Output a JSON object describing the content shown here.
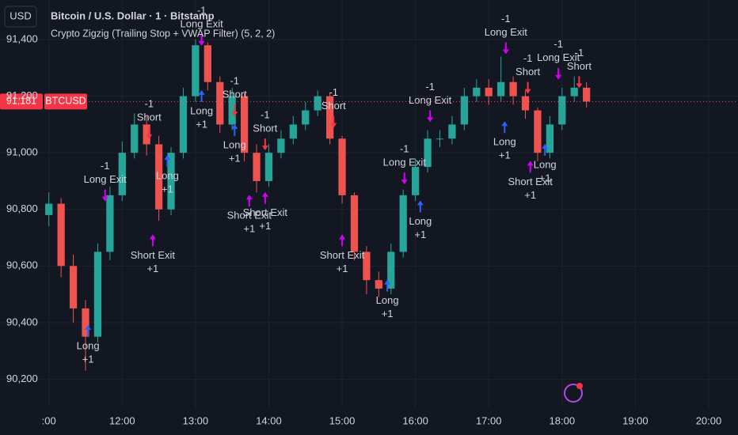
{
  "chart_data": {
    "type": "candlestick",
    "title": "Bitcoin / U.S. Dollar · 1 · Bitstamp",
    "currency": "USD",
    "indicator": "Crypto Zigzig (Trailing Stop + VWAP Filter) (5, 2, 2)",
    "symbol": "BTCUSD",
    "last_price": {
      "value": 91181,
      "label": "91,181"
    },
    "up_color": "#26a69a",
    "down_color": "#ef5350",
    "grid": true,
    "x": [
      660,
      670,
      680,
      690,
      700,
      710,
      720,
      730,
      740,
      750,
      760,
      770,
      780,
      790,
      800,
      810,
      820,
      830,
      840,
      850,
      860,
      870,
      880,
      890,
      900,
      910,
      920,
      930,
      940,
      950,
      960,
      970,
      980,
      990,
      1000,
      1010,
      1020,
      1030,
      1040,
      1050,
      1060,
      1070,
      1080,
      1090,
      1100
    ],
    "open": [
      90780,
      90820,
      90600,
      90450,
      90350,
      90650,
      90850,
      91000,
      91100,
      91030,
      90800,
      91000,
      91200,
      91380,
      91250,
      91100,
      91200,
      91000,
      90900,
      91000,
      91050,
      91100,
      91150,
      91200,
      91050,
      90850,
      90650,
      90550,
      90520,
      90650,
      90850,
      90950,
      91050,
      91050,
      91100,
      91200,
      91230,
      91200,
      91250,
      91200,
      91150,
      91000,
      91100,
      91200,
      91230
    ],
    "high": [
      90860,
      90840,
      90640,
      90480,
      90680,
      90880,
      91040,
      91140,
      91130,
      91060,
      91020,
      91230,
      91400,
      91390,
      91270,
      91230,
      91210,
      91030,
      91030,
      91080,
      91130,
      91180,
      91220,
      91210,
      91060,
      90860,
      90670,
      90580,
      90680,
      90870,
      90980,
      91080,
      91080,
      91130,
      91230,
      91260,
      91260,
      91340,
      91270,
      91220,
      91160,
      91130,
      91230,
      91270,
      91250
    ],
    "low": [
      90740,
      90560,
      90400,
      90230,
      90330,
      90620,
      90830,
      90980,
      90990,
      90760,
      90780,
      90980,
      91180,
      91220,
      91070,
      91080,
      90970,
      90860,
      90880,
      90980,
      91030,
      91080,
      91130,
      91030,
      90820,
      90620,
      90500,
      90490,
      90500,
      90630,
      90830,
      90930,
      91020,
      91030,
      91080,
      91180,
      91170,
      91180,
      91170,
      91120,
      90970,
      90980,
      91080,
      91180,
      91160
    ],
    "close": [
      90820,
      90600,
      90450,
      90350,
      90650,
      90850,
      91000,
      91100,
      91030,
      90800,
      91000,
      91200,
      91380,
      91250,
      91100,
      91200,
      91000,
      90900,
      91000,
      91050,
      91100,
      91150,
      91200,
      91050,
      90850,
      90650,
      90550,
      90520,
      90650,
      90850,
      90950,
      91050,
      91050,
      91100,
      91200,
      91230,
      91200,
      91250,
      91200,
      91150,
      91000,
      91100,
      91200,
      91230,
      91181
    ],
    "xlim": [
      620,
      1224
    ],
    "xticks": [
      {
        "value": 660,
        "label": ":00"
      },
      {
        "value": 720,
        "label": "12:00"
      },
      {
        "value": 780,
        "label": "13:00"
      },
      {
        "value": 840,
        "label": "14:00"
      },
      {
        "value": 900,
        "label": "15:00"
      },
      {
        "value": 960,
        "label": "16:00"
      },
      {
        "value": 1020,
        "label": "17:00"
      },
      {
        "value": 1080,
        "label": "18:00"
      },
      {
        "value": 1140,
        "label": "19:00"
      },
      {
        "value": 1200,
        "label": "20:00"
      }
    ],
    "ylim": [
      90120,
      91540
    ],
    "yticks": [
      {
        "value": 90200,
        "label": "90,200"
      },
      {
        "value": 90400,
        "label": "90,400"
      },
      {
        "value": 90600,
        "label": "90,600"
      },
      {
        "value": 90800,
        "label": "90,800"
      },
      {
        "value": 91000,
        "label": "91,000"
      },
      {
        "value": 91200,
        "label": "91,200"
      },
      {
        "value": 91400,
        "label": "91,400"
      }
    ],
    "signals": [
      {
        "time": 692,
        "price": 90400,
        "label": "Long",
        "qty": "+1",
        "color": "#2962ff"
      },
      {
        "time": 706,
        "price": 90820,
        "label": "Long Exit",
        "qty": "-1",
        "color": "#d500f9"
      },
      {
        "time": 742,
        "price": 91040,
        "label": "Short",
        "qty": "-1",
        "color": "#f23645"
      },
      {
        "time": 745,
        "price": 90720,
        "label": "Short Exit",
        "qty": "+1",
        "color": "#d500f9"
      },
      {
        "time": 757,
        "price": 91000,
        "label": "Long",
        "qty": "+1",
        "color": "#2962ff"
      },
      {
        "time": 785,
        "price": 91370,
        "label": "Long Exit",
        "qty": "-1",
        "color": "#d500f9"
      },
      {
        "time": 785,
        "price": 91230,
        "label": "Long",
        "qty": "+1",
        "color": "#2962ff"
      },
      {
        "time": 812,
        "price": 91120,
        "label": "Short",
        "qty": "-1",
        "color": "#f23645"
      },
      {
        "time": 812,
        "price": 91110,
        "label": "Long",
        "qty": "+1",
        "color": "#2962ff"
      },
      {
        "time": 824,
        "price": 90860,
        "label": "Short Exit",
        "qty": "+1",
        "color": "#d500f9"
      },
      {
        "time": 837,
        "price": 91000,
        "label": "Short",
        "qty": "-1",
        "color": "#f23645"
      },
      {
        "time": 837,
        "price": 90870,
        "label": "Short Exit",
        "qty": "+1",
        "color": "#d500f9"
      },
      {
        "time": 893,
        "price": 91080,
        "label": "Short",
        "qty": "-1",
        "color": "#f23645"
      },
      {
        "time": 900,
        "price": 90720,
        "label": "Short Exit",
        "qty": "+1",
        "color": "#d500f9"
      },
      {
        "time": 937,
        "price": 90560,
        "label": "Long",
        "qty": "+1",
        "color": "#2962ff"
      },
      {
        "time": 951,
        "price": 90880,
        "label": "Long Exit",
        "qty": "-1",
        "color": "#d500f9"
      },
      {
        "time": 964,
        "price": 90840,
        "label": "Long",
        "qty": "+1",
        "color": "#2962ff"
      },
      {
        "time": 972,
        "price": 91100,
        "label": "Long Exit",
        "qty": "-1",
        "color": "#d500f9"
      },
      {
        "time": 1034,
        "price": 91340,
        "label": "Long Exit",
        "qty": "-1",
        "color": "#d500f9"
      },
      {
        "time": 1033,
        "price": 91120,
        "label": "Long",
        "qty": "+1",
        "color": "#2962ff"
      },
      {
        "time": 1052,
        "price": 91200,
        "label": "Short",
        "qty": "-1",
        "color": "#f23645"
      },
      {
        "time": 1054,
        "price": 90980,
        "label": "Short Exit",
        "qty": "+1",
        "color": "#d500f9"
      },
      {
        "time": 1066,
        "price": 91040,
        "label": "Long",
        "qty": "+1",
        "color": "#2962ff"
      },
      {
        "time": 1077,
        "price": 91250,
        "label": "Long Exit",
        "qty": "-1",
        "color": "#d500f9"
      },
      {
        "time": 1094,
        "price": 91220,
        "label": "Short",
        "qty": "-1",
        "color": "#f23645"
      }
    ]
  }
}
